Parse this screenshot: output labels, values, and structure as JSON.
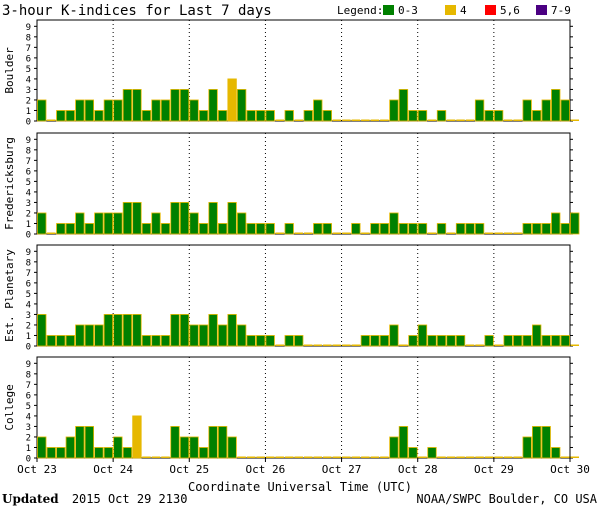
{
  "chart_data": {
    "type": "bar",
    "title": "3-hour K-indices for Last 7 days",
    "xlabel": "Coordinate Universal Time (UTC)",
    "legend": {
      "title": "Legend:",
      "placement": "top-right",
      "entries": [
        {
          "label": "0-3",
          "color": "#008000"
        },
        {
          "label": "4",
          "color": "#e6b800"
        },
        {
          "label": "5,6",
          "color": "#ff0000"
        },
        {
          "label": "7-9",
          "color": "#4b0082"
        }
      ]
    },
    "ylim": [
      0,
      9
    ],
    "y_ticks": [
      "0",
      "1",
      "2",
      "3",
      "4",
      "5",
      "6",
      "7",
      "8",
      "9"
    ],
    "x_ticks": [
      "Oct 23",
      "Oct 24",
      "Oct 25",
      "Oct 26",
      "Oct 27",
      "Oct 28",
      "Oct 29",
      "Oct 30"
    ],
    "grid": "vertical-dotted",
    "bar_outline_color": "#e6b800",
    "panels": [
      {
        "name": "Boulder",
        "values": [
          2,
          0,
          1,
          1,
          2,
          2,
          1,
          2,
          2,
          3,
          3,
          1,
          2,
          2,
          3,
          3,
          2,
          1,
          3,
          1,
          4,
          3,
          1,
          1,
          1,
          0,
          1,
          0,
          1,
          2,
          1,
          0,
          0,
          0,
          0,
          0,
          0,
          2,
          3,
          1,
          1,
          0,
          1,
          0,
          0,
          0,
          2,
          1,
          1,
          0,
          0,
          2,
          1,
          2,
          3,
          2,
          0
        ]
      },
      {
        "name": "Fredericksburg",
        "values": [
          2,
          0,
          1,
          1,
          2,
          1,
          2,
          2,
          2,
          3,
          3,
          1,
          2,
          1,
          3,
          3,
          2,
          1,
          3,
          1,
          3,
          2,
          1,
          1,
          1,
          0,
          1,
          0,
          0,
          1,
          1,
          0,
          0,
          1,
          0,
          1,
          1,
          2,
          1,
          1,
          1,
          0,
          1,
          0,
          1,
          1,
          1,
          0,
          0,
          0,
          0,
          1,
          1,
          1,
          2,
          1,
          2
        ]
      },
      {
        "name": "Est. Planetary",
        "values": [
          3,
          1,
          1,
          1,
          2,
          2,
          2,
          3,
          3,
          3,
          3,
          1,
          1,
          1,
          3,
          3,
          2,
          2,
          3,
          2,
          3,
          2,
          1,
          1,
          1,
          0,
          1,
          1,
          0,
          0,
          0,
          0,
          0,
          0,
          1,
          1,
          1,
          2,
          0,
          1,
          2,
          1,
          1,
          1,
          1,
          0,
          0,
          1,
          0,
          1,
          1,
          1,
          2,
          1,
          1,
          1,
          0
        ]
      },
      {
        "name": "College",
        "values": [
          2,
          1,
          1,
          2,
          3,
          3,
          1,
          1,
          2,
          1,
          4,
          0,
          0,
          0,
          3,
          2,
          2,
          1,
          3,
          3,
          2,
          0,
          0,
          0,
          0,
          0,
          0,
          0,
          0,
          0,
          0,
          0,
          0,
          0,
          0,
          0,
          0,
          2,
          3,
          1,
          0,
          1,
          0,
          0,
          0,
          0,
          0,
          0,
          0,
          0,
          0,
          2,
          3,
          3,
          1,
          0,
          0
        ]
      }
    ]
  },
  "footer": {
    "updated_label": "Updated",
    "updated_value": "2015 Oct 29 2130",
    "credit": "NOAA/SWPC Boulder, CO USA"
  }
}
